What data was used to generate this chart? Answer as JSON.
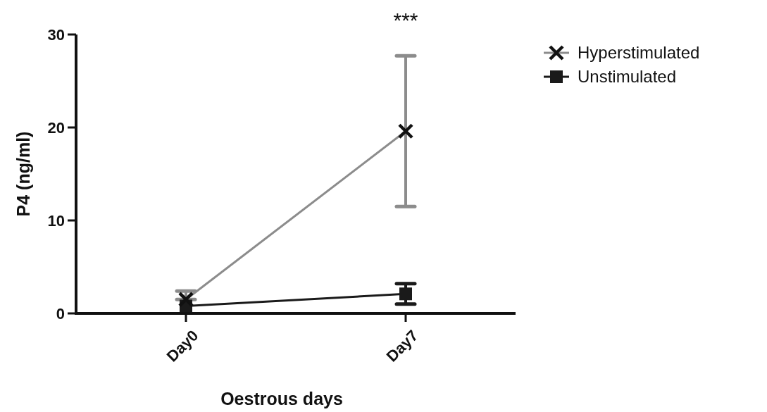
{
  "chart_data": {
    "type": "line",
    "xlabel": "Oestrous days",
    "ylabel": "P4 (ng/ml)",
    "categories": [
      "Day0",
      "Day7"
    ],
    "series": [
      {
        "name": "Hyperstimulated",
        "color": "#8c8c8c",
        "marker": "cross",
        "values": [
          1.5,
          19.6
        ],
        "errors": [
          [
            1.5,
            2.4
          ],
          [
            11.5,
            27.7
          ]
        ]
      },
      {
        "name": "Unstimulated",
        "color": "#1a1a1a",
        "marker": "square",
        "values": [
          0.8,
          2.1
        ],
        "errors": [
          null,
          [
            1.0,
            3.2
          ]
        ]
      }
    ],
    "ylim": [
      0,
      30
    ],
    "yticks": [
      0,
      10,
      20,
      30
    ],
    "grid": false,
    "legend": "top right",
    "annotations": [
      "***"
    ]
  }
}
